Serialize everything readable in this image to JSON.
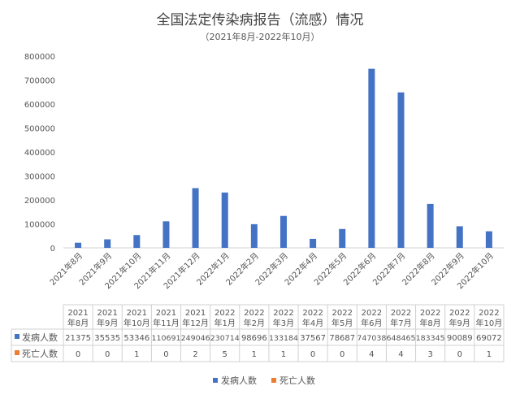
{
  "chart_data": {
    "type": "bar",
    "title": "全国法定传染病报告（流感）情况",
    "subtitle": "（2021年8月-2022年10月）",
    "categories": [
      "2021年8月",
      "2021年9月",
      "2021年10月",
      "2021年11月",
      "2021年12月",
      "2022年1月",
      "2022年2月",
      "2022年3月",
      "2022年4月",
      "2022年5月",
      "2022年6月",
      "2022年7月",
      "2022年8月",
      "2022年9月",
      "2022年10月"
    ],
    "table_headers": [
      [
        "2021",
        "年8月"
      ],
      [
        "2021",
        "年9月"
      ],
      [
        "2021",
        "年10月"
      ],
      [
        "2021",
        "年11月"
      ],
      [
        "2021",
        "年12月"
      ],
      [
        "2022",
        "年1月"
      ],
      [
        "2022",
        "年2月"
      ],
      [
        "2022",
        "年3月"
      ],
      [
        "2022",
        "年4月"
      ],
      [
        "2022",
        "年5月"
      ],
      [
        "2022",
        "年6月"
      ],
      [
        "2022",
        "年7月"
      ],
      [
        "2022",
        "年8月"
      ],
      [
        "2022",
        "年9月"
      ],
      [
        "2022",
        "年10月"
      ]
    ],
    "series": [
      {
        "name": "发病人数",
        "color": "#4472c4",
        "values": [
          21375,
          35535,
          53346,
          110691,
          249046,
          230714,
          98696,
          133184,
          37567,
          78687,
          747038,
          648465,
          183345,
          90089,
          69072
        ]
      },
      {
        "name": "死亡人数",
        "color": "#ed7d31",
        "values": [
          0,
          0,
          1,
          0,
          2,
          5,
          1,
          1,
          0,
          0,
          4,
          4,
          3,
          0,
          1
        ]
      }
    ],
    "ylim": [
      0,
      800000
    ],
    "yticks": [
      "0",
      "100000",
      "200000",
      "300000",
      "400000",
      "500000",
      "600000",
      "700000",
      "800000"
    ],
    "grid": false,
    "legend": "bottom"
  }
}
